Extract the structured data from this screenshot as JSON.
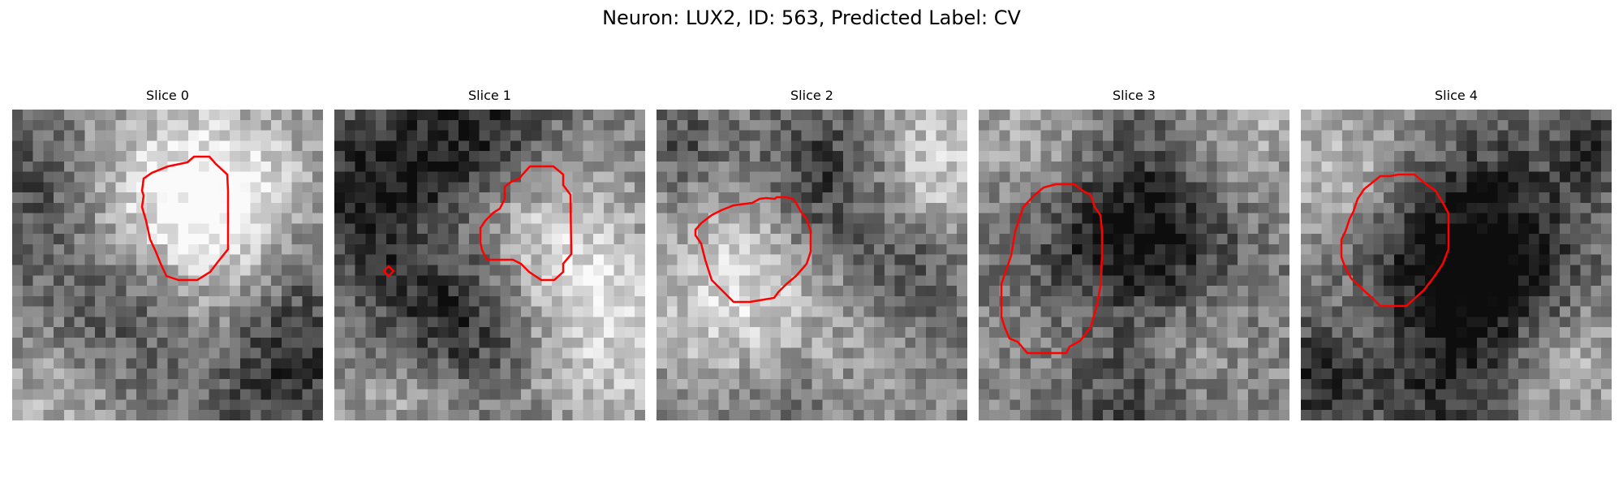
{
  "figure": {
    "title": "Neuron: LUX2, ID: 563, Predicted Label: CV"
  },
  "panels": [
    {
      "title": "Slice 0"
    },
    {
      "title": "Slice 1"
    },
    {
      "title": "Slice 2"
    },
    {
      "title": "Slice 3"
    },
    {
      "title": "Slice 4"
    }
  ],
  "colors": {
    "contour": "#ff0000"
  }
}
